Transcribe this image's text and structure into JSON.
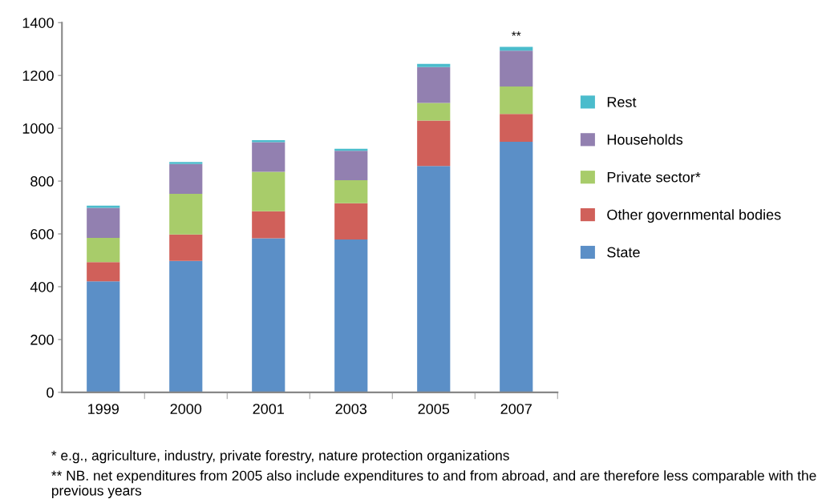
{
  "chart_data": {
    "type": "bar",
    "stacked": true,
    "categories": [
      "1999",
      "2000",
      "2001",
      "2003",
      "2005",
      "2007"
    ],
    "series": [
      {
        "name": "State",
        "color": "#5b8fc7",
        "values": [
          420,
          498,
          583,
          579,
          857,
          949
        ]
      },
      {
        "name": "Other governmental bodies",
        "color": "#d0605a",
        "values": [
          73,
          100,
          103,
          137,
          172,
          105
        ]
      },
      {
        "name": "Private sector*",
        "color": "#a8cc6a",
        "values": [
          92,
          154,
          149,
          87,
          67,
          104
        ]
      },
      {
        "name": "Households",
        "color": "#9280b0",
        "values": [
          114,
          113,
          112,
          112,
          136,
          136
        ]
      },
      {
        "name": "Rest",
        "color": "#4bbccc",
        "values": [
          8,
          7,
          8,
          7,
          12,
          14
        ]
      }
    ],
    "ylim": [
      0,
      1400
    ],
    "yticks": [
      0,
      200,
      400,
      600,
      800,
      1000,
      1200,
      1400
    ],
    "grid": false,
    "legend": "right",
    "annotations": [
      {
        "text": "**",
        "x": "2007",
        "y": 1308
      },
      "* e.g., agriculture, industry, private forestry, nature protection organizations",
      "** NB. net expenditures from 2005 also include expenditures to and from abroad, and are therefore less comparable with the previous years"
    ]
  }
}
